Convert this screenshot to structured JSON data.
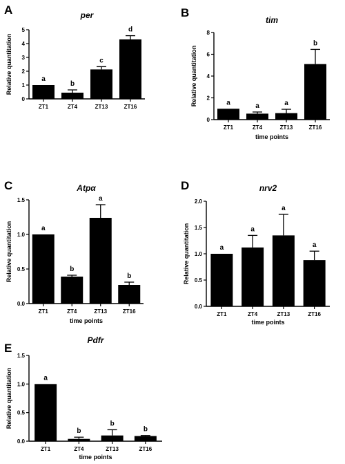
{
  "panels": [
    {
      "letter": "A"
    },
    {
      "letter": "B"
    },
    {
      "letter": "C"
    },
    {
      "letter": "D"
    },
    {
      "letter": "E"
    }
  ],
  "chart_data": [
    {
      "type": "bar",
      "title": "per",
      "xlabel": "",
      "ylabel": "Relative quantitation",
      "categories": [
        "ZT1",
        "ZT4",
        "ZT13",
        "ZT16"
      ],
      "values": [
        1.0,
        0.45,
        2.13,
        4.3
      ],
      "errors": [
        0.0,
        0.2,
        0.2,
        0.27
      ],
      "significance": [
        "a",
        "b",
        "c",
        "d"
      ],
      "ylim": [
        0,
        5
      ],
      "yticks": [
        0,
        1,
        2,
        3,
        4,
        5
      ],
      "yticklabels": [
        "0",
        "1",
        "2",
        "3",
        "4",
        "5"
      ],
      "bar_color": "#000000"
    },
    {
      "type": "bar",
      "title": "tim",
      "xlabel": "time points",
      "ylabel": "Relative quantitation",
      "categories": [
        "ZT1",
        "ZT4",
        "ZT13",
        "ZT16"
      ],
      "values": [
        1.0,
        0.55,
        0.6,
        5.1
      ],
      "errors": [
        0.0,
        0.15,
        0.35,
        1.35
      ],
      "significance": [
        "a",
        "a",
        "a",
        "b"
      ],
      "ylim": [
        0,
        8
      ],
      "yticks": [
        0,
        2,
        4,
        6,
        8
      ],
      "yticklabels": [
        "0",
        "2",
        "4",
        "6",
        "8"
      ],
      "bar_color": "#000000"
    },
    {
      "type": "bar",
      "title": "Atpα",
      "xlabel": "time points",
      "ylabel": "Relative quantitation",
      "categories": [
        "ZT1",
        "ZT4",
        "ZT13",
        "ZT16"
      ],
      "values": [
        1.0,
        0.39,
        1.24,
        0.27
      ],
      "errors": [
        0.0,
        0.02,
        0.19,
        0.04
      ],
      "significance": [
        "a",
        "b",
        "a",
        "b"
      ],
      "ylim": [
        0,
        1.5
      ],
      "yticks": [
        0,
        0.5,
        1.0,
        1.5
      ],
      "yticklabels": [
        "0.0",
        "0.5",
        "1.0",
        "1.5"
      ],
      "bar_color": "#000000"
    },
    {
      "type": "bar",
      "title": "nrv2",
      "xlabel": "time points",
      "ylabel": "Relative quantitation",
      "categories": [
        "ZT1",
        "ZT4",
        "ZT13",
        "ZT16"
      ],
      "values": [
        1.0,
        1.12,
        1.35,
        0.88
      ],
      "errors": [
        0.0,
        0.23,
        0.4,
        0.17
      ],
      "significance": [
        "a",
        "a",
        "a",
        "a"
      ],
      "ylim": [
        0,
        2.0
      ],
      "yticks": [
        0,
        0.5,
        1.0,
        1.5,
        2.0
      ],
      "yticklabels": [
        "0.0",
        "0.5",
        "1.0",
        "1.5",
        "2.0"
      ],
      "bar_color": "#000000"
    },
    {
      "type": "bar",
      "title": "Pdfr",
      "xlabel": "time points",
      "ylabel": "Relative quantitation",
      "categories": [
        "ZT1",
        "ZT4",
        "ZT13",
        "ZT16"
      ],
      "values": [
        1.0,
        0.04,
        0.1,
        0.09
      ],
      "errors": [
        0.0,
        0.03,
        0.1,
        0.01
      ],
      "significance": [
        "a",
        "b",
        "b",
        "b"
      ],
      "ylim": [
        0,
        1.5
      ],
      "yticks": [
        0,
        0.5,
        1.0,
        1.5
      ],
      "yticklabels": [
        "0.0",
        "0.5",
        "1.0",
        "1.5"
      ],
      "bar_color": "#000000"
    }
  ]
}
